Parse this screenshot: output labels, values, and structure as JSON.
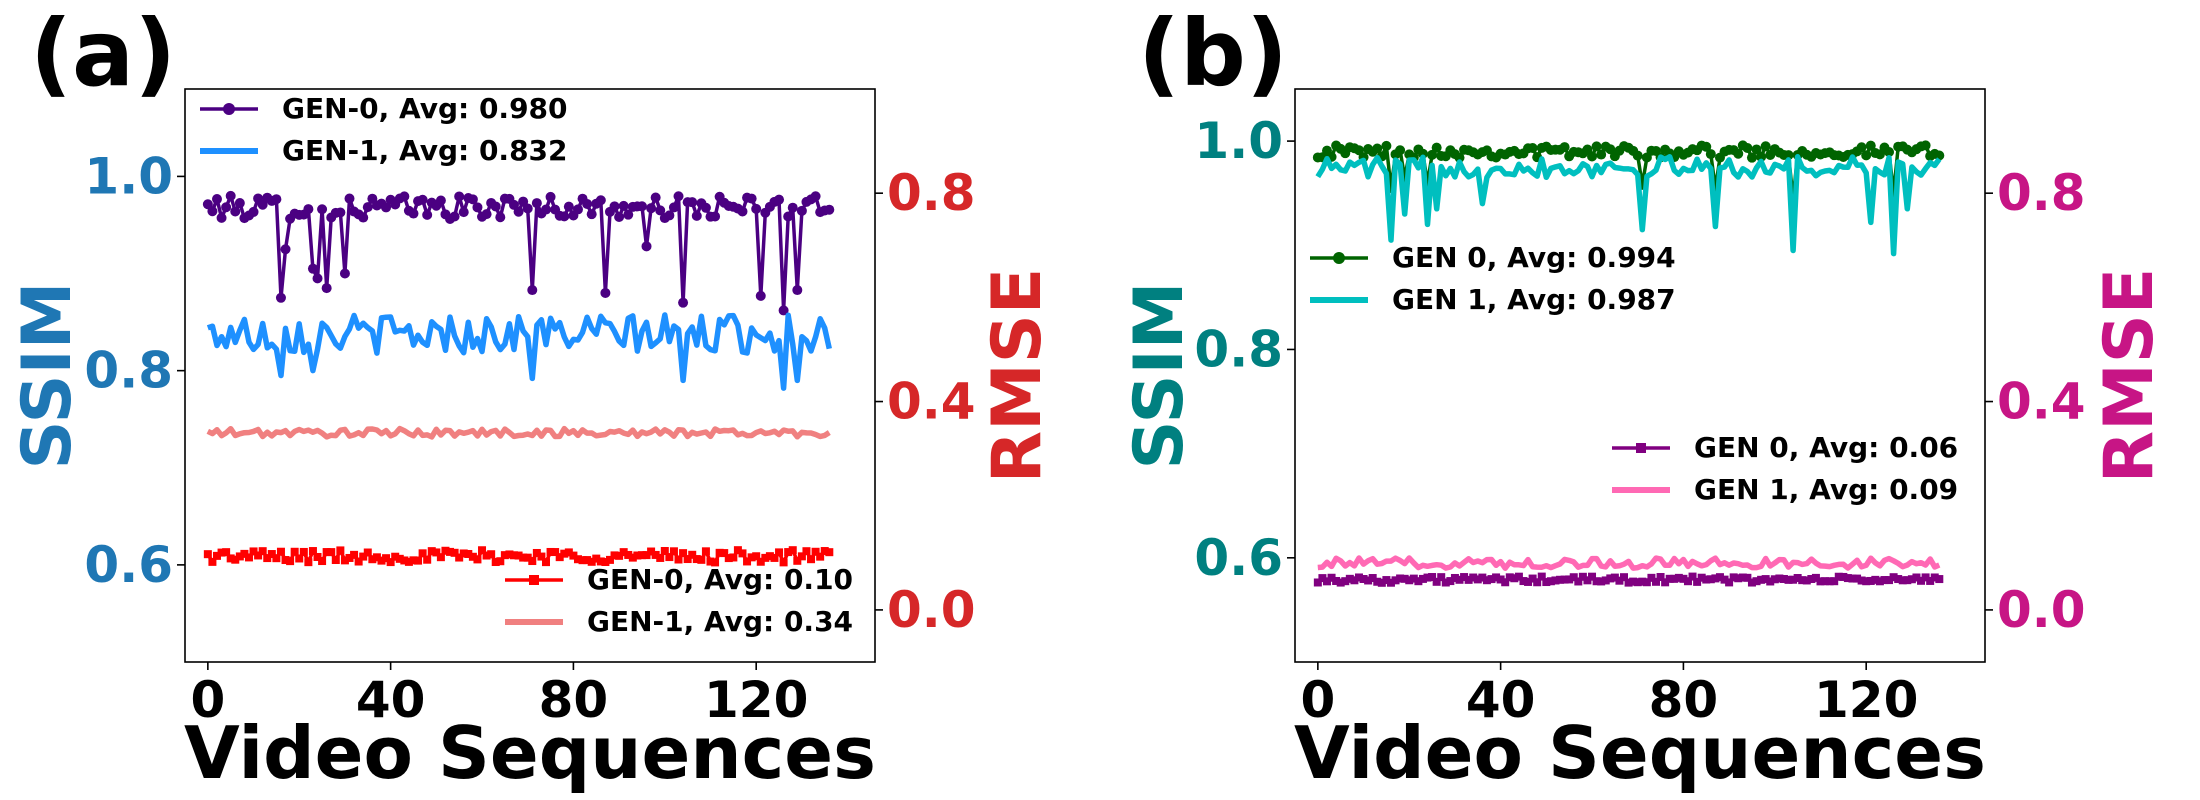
{
  "chart_data": [
    {
      "panel_label": "(a)",
      "type": "line",
      "title": "",
      "xlabel": "Video Sequences",
      "ylabel": "SSIM",
      "y2label": "RMSE",
      "xlim": [
        -5,
        146
      ],
      "ylim": [
        0.5,
        1.09
      ],
      "y2lim": [
        -0.1,
        1.0
      ],
      "x_ticks": [
        0,
        40,
        80,
        120
      ],
      "y_ticks": [
        0.6,
        0.8,
        1.0
      ],
      "y2_ticks": [
        0.0,
        0.4,
        0.8
      ],
      "ylabel_color": "#1f77b4",
      "y2label_color": "#d62728",
      "legend_left_position": "upper-left",
      "legend_right_position": "lower-right",
      "grid": false,
      "series": [
        {
          "name": "GEN-0, Avg: 0.980",
          "axis": "left",
          "color": "#4b0082",
          "marker": "circle",
          "base": 0.968,
          "amplitude": 0.012,
          "dips": [
            {
              "x": 16,
              "y": 0.875
            },
            {
              "x": 17,
              "y": 0.925
            },
            {
              "x": 23,
              "y": 0.905
            },
            {
              "x": 24,
              "y": 0.895
            },
            {
              "x": 26,
              "y": 0.885
            },
            {
              "x": 30,
              "y": 0.9
            },
            {
              "x": 71,
              "y": 0.883
            },
            {
              "x": 87,
              "y": 0.88
            },
            {
              "x": 96,
              "y": 0.928
            },
            {
              "x": 104,
              "y": 0.87
            },
            {
              "x": 121,
              "y": 0.877
            },
            {
              "x": 126,
              "y": 0.862
            },
            {
              "x": 129,
              "y": 0.883
            }
          ]
        },
        {
          "name": "GEN-1, Avg: 0.832",
          "axis": "left",
          "color": "#1e90ff",
          "marker": "none",
          "base": 0.838,
          "amplitude": 0.02,
          "dips": [
            {
              "x": 16,
              "y": 0.795
            },
            {
              "x": 23,
              "y": 0.8
            },
            {
              "x": 71,
              "y": 0.792
            },
            {
              "x": 104,
              "y": 0.79
            },
            {
              "x": 126,
              "y": 0.782
            },
            {
              "x": 129,
              "y": 0.79
            }
          ]
        },
        {
          "name": "GEN-0, Avg: 0.10",
          "axis": "right",
          "color": "#ff0000",
          "marker": "square",
          "base": 0.103,
          "amplitude": 0.012,
          "dips": []
        },
        {
          "name": "GEN-1, Avg: 0.34",
          "axis": "right",
          "color": "#f08080",
          "marker": "none",
          "base": 0.34,
          "amplitude": 0.008,
          "dips": []
        }
      ]
    },
    {
      "panel_label": "(b)",
      "type": "line",
      "title": "",
      "xlabel": "Video Sequences",
      "ylabel": "SSIM",
      "y2label": "RMSE",
      "xlim": [
        -5,
        146
      ],
      "ylim": [
        0.5,
        1.05
      ],
      "y2lim": [
        -0.1,
        1.0
      ],
      "x_ticks": [
        0,
        40,
        80,
        120
      ],
      "y_ticks": [
        0.6,
        0.8,
        1.0
      ],
      "y2_ticks": [
        0.0,
        0.4,
        0.8
      ],
      "ylabel_color": "#008080",
      "y2label_color": "#c71585",
      "legend_left_position": "center-left",
      "legend_right_position": "center-right",
      "grid": false,
      "series": [
        {
          "name": "GEN 0, Avg: 0.994",
          "axis": "left",
          "color": "#006400",
          "marker": "circle",
          "base": 0.99,
          "amplitude": 0.006,
          "dips": [
            {
              "x": 16,
              "y": 0.955
            },
            {
              "x": 19,
              "y": 0.965
            },
            {
              "x": 24,
              "y": 0.96
            },
            {
              "x": 71,
              "y": 0.958
            },
            {
              "x": 87,
              "y": 0.955
            },
            {
              "x": 104,
              "y": 0.945
            },
            {
              "x": 126,
              "y": 0.95
            }
          ]
        },
        {
          "name": "GEN 1, Avg: 0.987",
          "axis": "left",
          "color": "#00bfbf",
          "marker": "none",
          "base": 0.975,
          "amplitude": 0.01,
          "dips": [
            {
              "x": 16,
              "y": 0.905
            },
            {
              "x": 19,
              "y": 0.93
            },
            {
              "x": 24,
              "y": 0.92
            },
            {
              "x": 26,
              "y": 0.935
            },
            {
              "x": 36,
              "y": 0.94
            },
            {
              "x": 71,
              "y": 0.915
            },
            {
              "x": 87,
              "y": 0.918
            },
            {
              "x": 104,
              "y": 0.895
            },
            {
              "x": 121,
              "y": 0.922
            },
            {
              "x": 126,
              "y": 0.892
            },
            {
              "x": 129,
              "y": 0.935
            }
          ]
        },
        {
          "name": "GEN 0, Avg: 0.06",
          "axis": "right",
          "color": "#800080",
          "marker": "square",
          "base": 0.058,
          "amplitude": 0.006,
          "dips": []
        },
        {
          "name": "GEN 1, Avg: 0.09",
          "axis": "right",
          "color": "#ff69b4",
          "marker": "none",
          "base": 0.09,
          "amplitude": 0.01,
          "dips": []
        }
      ]
    }
  ]
}
